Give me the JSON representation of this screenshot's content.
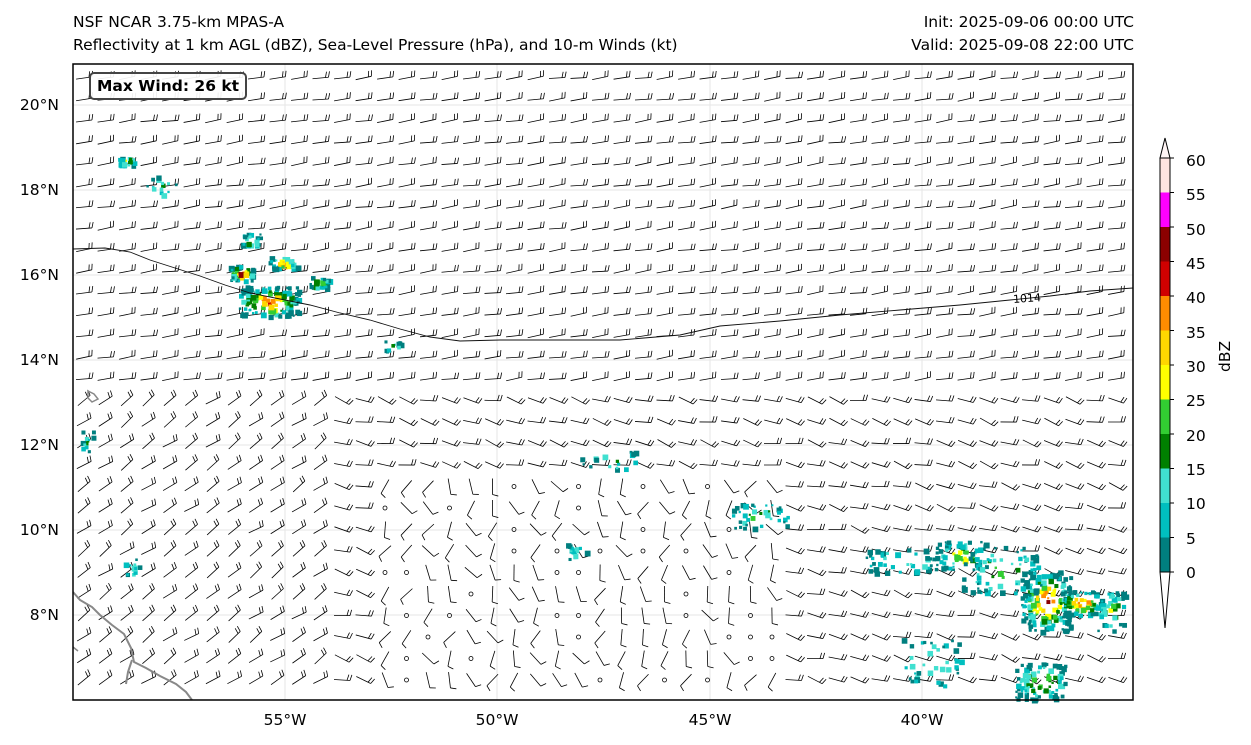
{
  "header": {
    "title_left_1": "NSF NCAR 3.75-km MPAS-A",
    "title_left_2": "Reflectivity at 1 km AGL (dBZ), Sea-Level Pressure (hPa), and 10-m Winds (kt)",
    "title_right_1": "Init: 2025-09-06 00:00 UTC",
    "title_right_2": "Valid: 2025-09-08 22:00 UTC"
  },
  "map": {
    "max_wind_label": "Max Wind: 26 kt",
    "isobar_label": "1014",
    "lat_labels": [
      "20°N",
      "18°N",
      "16°N",
      "14°N",
      "12°N",
      "10°N",
      "8°N"
    ],
    "lon_labels": [
      "55°W",
      "50°W",
      "45°W",
      "40°W"
    ],
    "extent": {
      "lon_min": -59.8,
      "lon_max": -34.8,
      "lat_min": 6.0,
      "lat_max": 21.0
    }
  },
  "colorbar": {
    "unit": "dBZ",
    "ticks": [
      "0",
      "5",
      "10",
      "15",
      "20",
      "25",
      "30",
      "35",
      "40",
      "45",
      "50",
      "55",
      "60"
    ],
    "colors": [
      "#007f7f",
      "#00bfbf",
      "#40e0d0",
      "#008000",
      "#32cd32",
      "#ffff00",
      "#ffd700",
      "#ff8c00",
      "#d00000",
      "#8b0000",
      "#ff00ff",
      "#ffe4e1"
    ]
  }
}
